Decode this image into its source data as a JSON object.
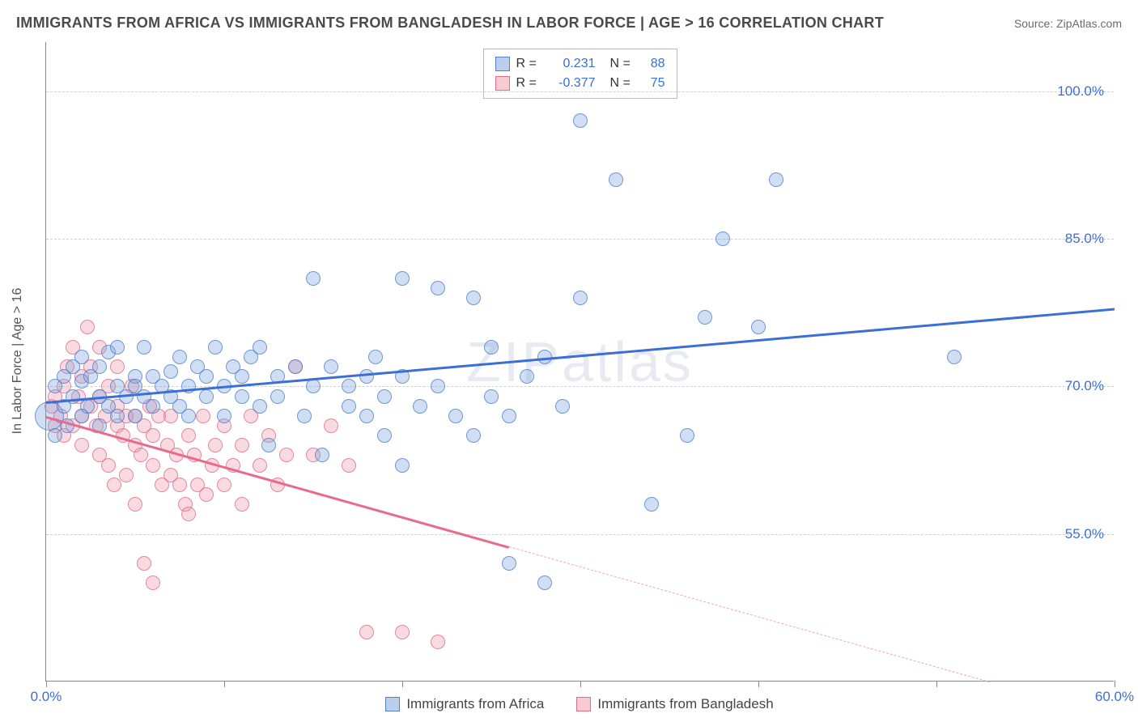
{
  "title": "IMMIGRANTS FROM AFRICA VS IMMIGRANTS FROM BANGLADESH IN LABOR FORCE | AGE > 16 CORRELATION CHART",
  "source": "Source: ZipAtlas.com",
  "watermark": "ZIPatlas",
  "ylabel": "In Labor Force | Age > 16",
  "chart": {
    "type": "scatter",
    "xlim": [
      0,
      60
    ],
    "ylim": [
      40,
      105
    ],
    "y_ticks": [
      55.0,
      70.0,
      85.0,
      100.0
    ],
    "y_tick_labels": [
      "55.0%",
      "70.0%",
      "85.0%",
      "100.0%"
    ],
    "x_ticks": [
      0,
      10,
      20,
      30,
      40,
      50,
      60
    ],
    "x_tick_labels": {
      "0": "0.0%",
      "60": "60.0%"
    },
    "background_color": "#ffffff",
    "grid_color": "#d0d0d0",
    "colors": {
      "blue_fill": "rgba(120,160,220,0.35)",
      "blue_stroke": "rgba(70,120,200,0.7)",
      "pink_fill": "rgba(240,150,170,0.35)",
      "pink_stroke": "rgba(220,100,130,0.7)",
      "blue_line": "#3b6fd6",
      "pink_line": "#e86b8a",
      "axis_text": "#3b6fd6"
    },
    "marker_radius": 9,
    "bubble_radius": 18
  },
  "legend_top": {
    "rows": [
      {
        "color": "blue",
        "r_label": "R =",
        "r_value": "0.231",
        "n_label": "N =",
        "n_value": "88"
      },
      {
        "color": "pink",
        "r_label": "R =",
        "r_value": "-0.377",
        "n_label": "N =",
        "n_value": "75"
      }
    ]
  },
  "legend_bottom": [
    {
      "color": "blue",
      "label": "Immigrants from Africa"
    },
    {
      "color": "pink",
      "label": "Immigrants from Bangladesh"
    }
  ],
  "series": {
    "africa": {
      "color": "blue",
      "trend": {
        "x1": 0,
        "y1": 68.5,
        "x2": 60,
        "y2": 78.0,
        "solid_until": 60
      },
      "points": [
        [
          0.2,
          67,
          18
        ],
        [
          0.5,
          65,
          9
        ],
        [
          0.5,
          70,
          9
        ],
        [
          1,
          68,
          9
        ],
        [
          1,
          71,
          9
        ],
        [
          1.2,
          66,
          9
        ],
        [
          1.5,
          69,
          9
        ],
        [
          1.5,
          72,
          9
        ],
        [
          2,
          67,
          9
        ],
        [
          2,
          70.5,
          9
        ],
        [
          2,
          73,
          9
        ],
        [
          2.3,
          68,
          9
        ],
        [
          2.5,
          71,
          9
        ],
        [
          3,
          66,
          9
        ],
        [
          3,
          69,
          9
        ],
        [
          3,
          72,
          9
        ],
        [
          3.5,
          68,
          9
        ],
        [
          3.5,
          73.5,
          9
        ],
        [
          4,
          67,
          9
        ],
        [
          4,
          70,
          9
        ],
        [
          4,
          74,
          9
        ],
        [
          4.5,
          69,
          9
        ],
        [
          5,
          67,
          9
        ],
        [
          5,
          71,
          9
        ],
        [
          5,
          70,
          9
        ],
        [
          5.5,
          69,
          9
        ],
        [
          5.5,
          74,
          9
        ],
        [
          6,
          68,
          9
        ],
        [
          6,
          71,
          9
        ],
        [
          6.5,
          70,
          9
        ],
        [
          7,
          69,
          9
        ],
        [
          7,
          71.5,
          9
        ],
        [
          7.5,
          68,
          9
        ],
        [
          7.5,
          73,
          9
        ],
        [
          8,
          67,
          9
        ],
        [
          8,
          70,
          9
        ],
        [
          8.5,
          72,
          9
        ],
        [
          9,
          69,
          9
        ],
        [
          9,
          71,
          9
        ],
        [
          9.5,
          74,
          9
        ],
        [
          10,
          67,
          9
        ],
        [
          10,
          70,
          9
        ],
        [
          10.5,
          72,
          9
        ],
        [
          11,
          69,
          9
        ],
        [
          11,
          71,
          9
        ],
        [
          11.5,
          73,
          9
        ],
        [
          12,
          68,
          9
        ],
        [
          12,
          74,
          9
        ],
        [
          12.5,
          64,
          9
        ],
        [
          13,
          71,
          9
        ],
        [
          13,
          69,
          9
        ],
        [
          14,
          72,
          9
        ],
        [
          14.5,
          67,
          9
        ],
        [
          15,
          81,
          9
        ],
        [
          15,
          70,
          9
        ],
        [
          15.5,
          63,
          9
        ],
        [
          16,
          72,
          9
        ],
        [
          17,
          70,
          9
        ],
        [
          17,
          68,
          9
        ],
        [
          18,
          71,
          9
        ],
        [
          18,
          67,
          9
        ],
        [
          18.5,
          73,
          9
        ],
        [
          19,
          65,
          9
        ],
        [
          19,
          69,
          9
        ],
        [
          20,
          81,
          9
        ],
        [
          20,
          62,
          9
        ],
        [
          20,
          71,
          9
        ],
        [
          21,
          68,
          9
        ],
        [
          22,
          80,
          9
        ],
        [
          22,
          70,
          9
        ],
        [
          23,
          67,
          9
        ],
        [
          24,
          79,
          9
        ],
        [
          24,
          65,
          9
        ],
        [
          25,
          69,
          9
        ],
        [
          25,
          74,
          9
        ],
        [
          26,
          52,
          9
        ],
        [
          26,
          67,
          9
        ],
        [
          27,
          71,
          9
        ],
        [
          28,
          50,
          9
        ],
        [
          28,
          73,
          9
        ],
        [
          29,
          68,
          9
        ],
        [
          30,
          79,
          9
        ],
        [
          30,
          97,
          9
        ],
        [
          32,
          91,
          9
        ],
        [
          34,
          58,
          9
        ],
        [
          36,
          65,
          9
        ],
        [
          37,
          77,
          9
        ],
        [
          38,
          85,
          9
        ],
        [
          41,
          91,
          9
        ],
        [
          40,
          76,
          9
        ],
        [
          51,
          73,
          9
        ]
      ]
    },
    "bangladesh": {
      "color": "pink",
      "trend": {
        "x1": 0,
        "y1": 67.0,
        "x2": 53,
        "y2": 40.0,
        "solid_until": 26
      },
      "points": [
        [
          0.3,
          68,
          9
        ],
        [
          0.5,
          66,
          9
        ],
        [
          0.5,
          69,
          9
        ],
        [
          0.8,
          67,
          9
        ],
        [
          1,
          65,
          9
        ],
        [
          1,
          70,
          9
        ],
        [
          1.2,
          72,
          9
        ],
        [
          1.5,
          66,
          9
        ],
        [
          1.5,
          74,
          9
        ],
        [
          1.8,
          69,
          9
        ],
        [
          2,
          64,
          9
        ],
        [
          2,
          67,
          9
        ],
        [
          2,
          71,
          9
        ],
        [
          2.3,
          76,
          9
        ],
        [
          2.5,
          68,
          9
        ],
        [
          2.5,
          72,
          9
        ],
        [
          2.8,
          66,
          9
        ],
        [
          3,
          63,
          9
        ],
        [
          3,
          69,
          9
        ],
        [
          3,
          74,
          9
        ],
        [
          3.3,
          67,
          9
        ],
        [
          3.5,
          62,
          9
        ],
        [
          3.5,
          70,
          9
        ],
        [
          3.8,
          60,
          9
        ],
        [
          4,
          66,
          9
        ],
        [
          4,
          68,
          9
        ],
        [
          4,
          72,
          9
        ],
        [
          4.3,
          65,
          9
        ],
        [
          4.5,
          61,
          9
        ],
        [
          4.5,
          67,
          9
        ],
        [
          4.8,
          70,
          9
        ],
        [
          5,
          58,
          9
        ],
        [
          5,
          64,
          9
        ],
        [
          5,
          67,
          9
        ],
        [
          5.3,
          63,
          9
        ],
        [
          5.5,
          66,
          9
        ],
        [
          5.5,
          52,
          9
        ],
        [
          5.8,
          68,
          9
        ],
        [
          6,
          62,
          9
        ],
        [
          6,
          65,
          9
        ],
        [
          6,
          50,
          9
        ],
        [
          6.3,
          67,
          9
        ],
        [
          6.5,
          60,
          9
        ],
        [
          6.8,
          64,
          9
        ],
        [
          7,
          61,
          9
        ],
        [
          7,
          67,
          9
        ],
        [
          7.3,
          63,
          9
        ],
        [
          7.5,
          60,
          9
        ],
        [
          7.8,
          58,
          9
        ],
        [
          8,
          65,
          9
        ],
        [
          8,
          57,
          9
        ],
        [
          8.3,
          63,
          9
        ],
        [
          8.5,
          60,
          9
        ],
        [
          8.8,
          67,
          9
        ],
        [
          9,
          59,
          9
        ],
        [
          9.3,
          62,
          9
        ],
        [
          9.5,
          64,
          9
        ],
        [
          10,
          60,
          9
        ],
        [
          10,
          66,
          9
        ],
        [
          10.5,
          62,
          9
        ],
        [
          11,
          58,
          9
        ],
        [
          11,
          64,
          9
        ],
        [
          11.5,
          67,
          9
        ],
        [
          12,
          62,
          9
        ],
        [
          12.5,
          65,
          9
        ],
        [
          13,
          60,
          9
        ],
        [
          13.5,
          63,
          9
        ],
        [
          14,
          72,
          9
        ],
        [
          15,
          63,
          9
        ],
        [
          16,
          66,
          9
        ],
        [
          17,
          62,
          9
        ],
        [
          18,
          45,
          9
        ],
        [
          20,
          45,
          9
        ],
        [
          22,
          44,
          9
        ]
      ]
    }
  }
}
